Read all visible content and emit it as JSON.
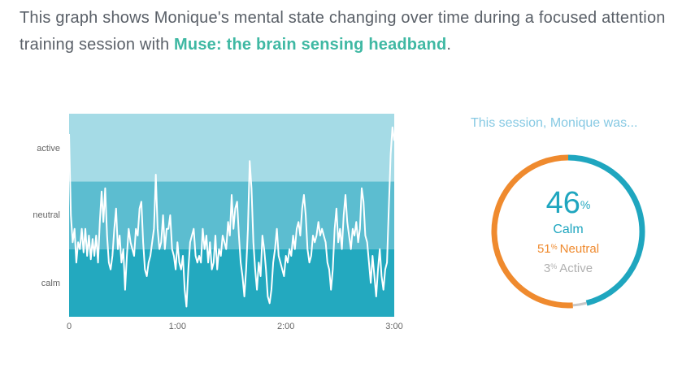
{
  "headline": {
    "text_before": "This graph shows Monique's mental state changing over time during a focused attention training session with ",
    "link_text": "Muse: the brain sensing headband",
    "text_after": "."
  },
  "colors": {
    "band_active": "#a5dbe6",
    "band_neutral": "#5cbdd0",
    "band_calm": "#23a9bf",
    "trace": "#ffffff",
    "calm": "#1fa6bf",
    "neutral": "#ef8a2e",
    "active": "#c8c8c8",
    "subtitle": "#86c9e3"
  },
  "chart_data": {
    "type": "line",
    "y_categories": [
      "calm",
      "neutral",
      "active"
    ],
    "x_ticks": [
      "0",
      "1:00",
      "2:00",
      "3:00"
    ],
    "xlim": [
      0,
      180
    ],
    "ylim": [
      0,
      3
    ],
    "series": [
      {
        "values": [
          [
            0.0,
            2.7
          ],
          [
            1.0,
            1.5
          ],
          [
            2.0,
            1.1
          ],
          [
            3.0,
            1.3
          ],
          [
            4.0,
            0.8
          ],
          [
            5.0,
            1.1
          ],
          [
            6.0,
            1.0
          ],
          [
            7.0,
            1.3
          ],
          [
            8.0,
            0.95
          ],
          [
            9.0,
            1.3
          ],
          [
            10.0,
            0.9
          ],
          [
            11.0,
            1.2
          ],
          [
            12.0,
            0.85
          ],
          [
            13.0,
            1.15
          ],
          [
            14.0,
            0.9
          ],
          [
            15.0,
            1.2
          ],
          [
            16.0,
            0.8
          ],
          [
            17.0,
            1.4
          ],
          [
            18.0,
            1.85
          ],
          [
            19.0,
            1.4
          ],
          [
            20.0,
            1.9
          ],
          [
            21.0,
            1.2
          ],
          [
            22.0,
            0.8
          ],
          [
            23.0,
            0.7
          ],
          [
            24.0,
            0.9
          ],
          [
            25.0,
            1.3
          ],
          [
            26.0,
            1.6
          ],
          [
            27.0,
            1.0
          ],
          [
            28.0,
            1.2
          ],
          [
            29.0,
            0.8
          ],
          [
            30.0,
            1.0
          ],
          [
            31.0,
            0.4
          ],
          [
            32.0,
            0.9
          ],
          [
            33.0,
            1.3
          ],
          [
            34.0,
            1.1
          ],
          [
            35.0,
            1.0
          ],
          [
            36.0,
            0.9
          ],
          [
            37.0,
            1.3
          ],
          [
            38.0,
            1.2
          ],
          [
            39.0,
            1.6
          ],
          [
            40.0,
            1.7
          ],
          [
            41.0,
            1.1
          ],
          [
            42.0,
            0.7
          ],
          [
            43.0,
            0.6
          ],
          [
            44.0,
            0.8
          ],
          [
            45.0,
            0.9
          ],
          [
            46.0,
            1.1
          ],
          [
            47.0,
            1.3
          ],
          [
            48.0,
            2.1
          ],
          [
            49.0,
            1.3
          ],
          [
            50.0,
            1.0
          ],
          [
            51.0,
            1.1
          ],
          [
            52.0,
            1.5
          ],
          [
            53.0,
            1.0
          ],
          [
            54.0,
            1.3
          ],
          [
            55.0,
            1.3
          ],
          [
            56.0,
            1.5
          ],
          [
            57.0,
            1.0
          ],
          [
            58.0,
            0.9
          ],
          [
            59.0,
            0.7
          ],
          [
            60.0,
            1.1
          ],
          [
            61.0,
            0.8
          ],
          [
            62.0,
            0.7
          ],
          [
            63.0,
            0.9
          ],
          [
            64.0,
            0.4
          ],
          [
            65.0,
            0.15
          ],
          [
            66.0,
            0.7
          ],
          [
            67.0,
            1.1
          ],
          [
            68.0,
            1.2
          ],
          [
            69.0,
            1.3
          ],
          [
            70.0,
            0.9
          ],
          [
            71.0,
            0.8
          ],
          [
            72.0,
            0.9
          ],
          [
            73.0,
            0.8
          ],
          [
            74.0,
            1.3
          ],
          [
            75.0,
            1.0
          ],
          [
            76.0,
            1.2
          ],
          [
            77.0,
            0.8
          ],
          [
            78.0,
            1.1
          ],
          [
            79.0,
            0.7
          ],
          [
            80.0,
            0.8
          ],
          [
            81.0,
            1.2
          ],
          [
            82.0,
            0.7
          ],
          [
            83.0,
            1.0
          ],
          [
            84.0,
            0.9
          ],
          [
            85.0,
            1.2
          ],
          [
            86.0,
            1.1
          ],
          [
            87.0,
            1.0
          ],
          [
            88.0,
            1.4
          ],
          [
            89.0,
            1.2
          ],
          [
            90.0,
            1.8
          ],
          [
            91.0,
            1.3
          ],
          [
            92.0,
            1.6
          ],
          [
            93.0,
            1.7
          ],
          [
            94.0,
            1.2
          ],
          [
            95.0,
            0.8
          ],
          [
            96.0,
            0.6
          ],
          [
            97.0,
            0.3
          ],
          [
            98.0,
            0.7
          ],
          [
            99.0,
            1.3
          ],
          [
            100.0,
            2.3
          ],
          [
            101.0,
            1.9
          ],
          [
            102.0,
            1.1
          ],
          [
            103.0,
            0.7
          ],
          [
            104.0,
            0.4
          ],
          [
            105.0,
            0.8
          ],
          [
            106.0,
            0.6
          ],
          [
            107.0,
            1.2
          ],
          [
            108.0,
            1.0
          ],
          [
            109.0,
            0.7
          ],
          [
            110.0,
            0.3
          ],
          [
            111.0,
            0.2
          ],
          [
            112.0,
            0.4
          ],
          [
            113.0,
            0.8
          ],
          [
            114.0,
            1.0
          ],
          [
            115.0,
            1.3
          ],
          [
            116.0,
            0.9
          ],
          [
            117.0,
            0.8
          ],
          [
            118.0,
            0.7
          ],
          [
            119.0,
            0.6
          ],
          [
            120.0,
            0.9
          ],
          [
            121.0,
            0.8
          ],
          [
            122.0,
            1.0
          ],
          [
            123.0,
            0.9
          ],
          [
            124.0,
            1.2
          ],
          [
            125.0,
            1.0
          ],
          [
            126.0,
            1.3
          ],
          [
            127.0,
            1.4
          ],
          [
            128.0,
            1.2
          ],
          [
            129.0,
            1.6
          ],
          [
            130.0,
            1.8
          ],
          [
            131.0,
            1.5
          ],
          [
            132.0,
            1.0
          ],
          [
            133.0,
            0.8
          ],
          [
            134.0,
            0.9
          ],
          [
            135.0,
            1.2
          ],
          [
            136.0,
            1.1
          ],
          [
            137.0,
            1.2
          ],
          [
            138.0,
            1.4
          ],
          [
            139.0,
            1.2
          ],
          [
            140.0,
            1.3
          ],
          [
            141.0,
            1.2
          ],
          [
            142.0,
            1.1
          ],
          [
            143.0,
            0.8
          ],
          [
            144.0,
            0.7
          ],
          [
            145.0,
            0.4
          ],
          [
            146.0,
            0.7
          ],
          [
            147.0,
            1.3
          ],
          [
            148.0,
            1.6
          ],
          [
            149.0,
            1.1
          ],
          [
            150.0,
            1.3
          ],
          [
            151.0,
            1.0
          ],
          [
            152.0,
            1.5
          ],
          [
            153.0,
            1.8
          ],
          [
            154.0,
            1.4
          ],
          [
            155.0,
            1.2
          ],
          [
            156.0,
            1.0
          ],
          [
            157.0,
            1.3
          ],
          [
            158.0,
            1.2
          ],
          [
            159.0,
            1.4
          ],
          [
            160.0,
            1.1
          ],
          [
            161.0,
            1.3
          ],
          [
            162.0,
            1.9
          ],
          [
            163.0,
            1.7
          ],
          [
            164.0,
            1.2
          ],
          [
            165.0,
            1.1
          ],
          [
            166.0,
            0.8
          ],
          [
            167.0,
            0.5
          ],
          [
            168.0,
            0.9
          ],
          [
            169.0,
            0.6
          ],
          [
            170.0,
            0.3
          ],
          [
            171.0,
            0.7
          ],
          [
            172.0,
            1.0
          ],
          [
            173.0,
            0.6
          ],
          [
            174.0,
            0.4
          ],
          [
            175.0,
            0.7
          ],
          [
            176.0,
            0.8
          ],
          [
            177.0,
            1.6
          ],
          [
            178.0,
            2.4
          ],
          [
            179.0,
            2.8
          ],
          [
            180.0,
            2.6
          ]
        ]
      }
    ],
    "grid": false,
    "legend": "none"
  },
  "summary": {
    "title": "This session, Monique was...",
    "calm_pct": "46",
    "pct_sign": "%",
    "calm_label": "Calm",
    "neutral_pct": "51",
    "neutral_label": "Neutral",
    "active_pct": "3",
    "active_label": "Active",
    "donut": {
      "segments": [
        {
          "name": "calm",
          "value": 46
        },
        {
          "name": "active",
          "value": 3
        },
        {
          "name": "neutral",
          "value": 51
        }
      ]
    }
  }
}
